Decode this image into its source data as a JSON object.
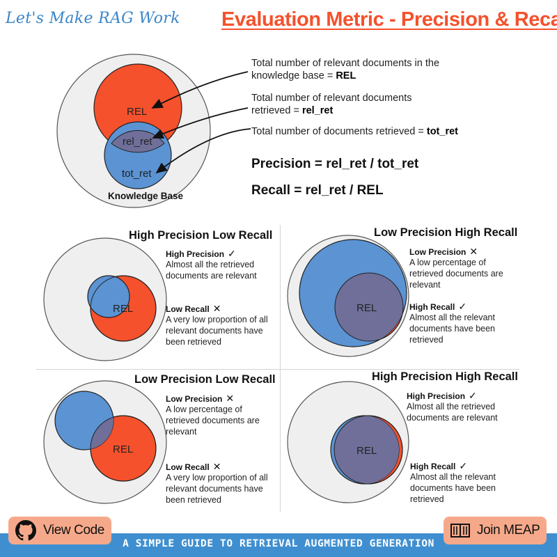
{
  "header": {
    "brand": "Let's Make RAG Work",
    "title": "Evaluation Metric - Precision & Recall"
  },
  "top_diagram": {
    "labels": {
      "rel": "REL",
      "rel_ret": "rel_ret",
      "tot_ret": "tot_ret",
      "knowledge_base": "Knowledge Base"
    },
    "notes": [
      {
        "text": "Total number of relevant documents in the knowledge base = ",
        "term": "REL"
      },
      {
        "text": "Total number of relevant documents retrieved = ",
        "term": "rel_ret"
      },
      {
        "text": "Total number of documents retrieved = ",
        "term": "tot_ret"
      }
    ],
    "formulas": {
      "precision": "Precision = rel_ret / tot_ret",
      "recall": "Recall = rel_ret / REL"
    }
  },
  "panels": [
    {
      "title": "High Precision Low Recall",
      "rel_label": "REL",
      "precision": {
        "label": "High Precision",
        "mark": "✓",
        "desc": "Almost all the retrieved documents are relevant"
      },
      "recall": {
        "label": "Low Recall",
        "mark": "✕",
        "desc": "A very low proportion of all relevant documents have been retrieved"
      }
    },
    {
      "title": "Low Precision High Recall",
      "rel_label": "REL",
      "precision": {
        "label": "Low Precision",
        "mark": "✕",
        "desc": "A low percentage of retrieved documents are relevant"
      },
      "recall": {
        "label": "High Recall",
        "mark": "✓",
        "desc": "Almost all the relevant documents have been retrieved"
      }
    },
    {
      "title": "Low Precision Low Recall",
      "rel_label": "REL",
      "precision": {
        "label": "Low Precision",
        "mark": "✕",
        "desc": "A low percentage of retrieved documents are relevant"
      },
      "recall": {
        "label": "Low Recall",
        "mark": "✕",
        "desc": "A very low proportion of all relevant documents have been retrieved"
      }
    },
    {
      "title": "High Precision High Recall",
      "rel_label": "REL",
      "precision": {
        "label": "High Precision",
        "mark": "✓",
        "desc": "Almost all the retrieved documents are relevant"
      },
      "recall": {
        "label": "High Recall",
        "mark": "✓",
        "desc": "Almost all the relevant documents have been retrieved"
      }
    }
  ],
  "footer": {
    "view_code": "View Code",
    "join_meap": "Join MEAP",
    "tagline": "A SIMPLE GUIDE TO RETRIEVAL AUGMENTED GENERATION",
    "icons": {
      "view_code": "github-icon",
      "join_meap": "book-icon"
    }
  },
  "colors": {
    "relevant": "#f4512c",
    "retrieved": "#5b93d3",
    "overlap": "#6f6f9a",
    "knowledge_base": "#efefef",
    "title": "#f4512c",
    "brand": "#3a86c8",
    "button": "#f6a98a",
    "footer_bar": "#3f8fd0"
  }
}
